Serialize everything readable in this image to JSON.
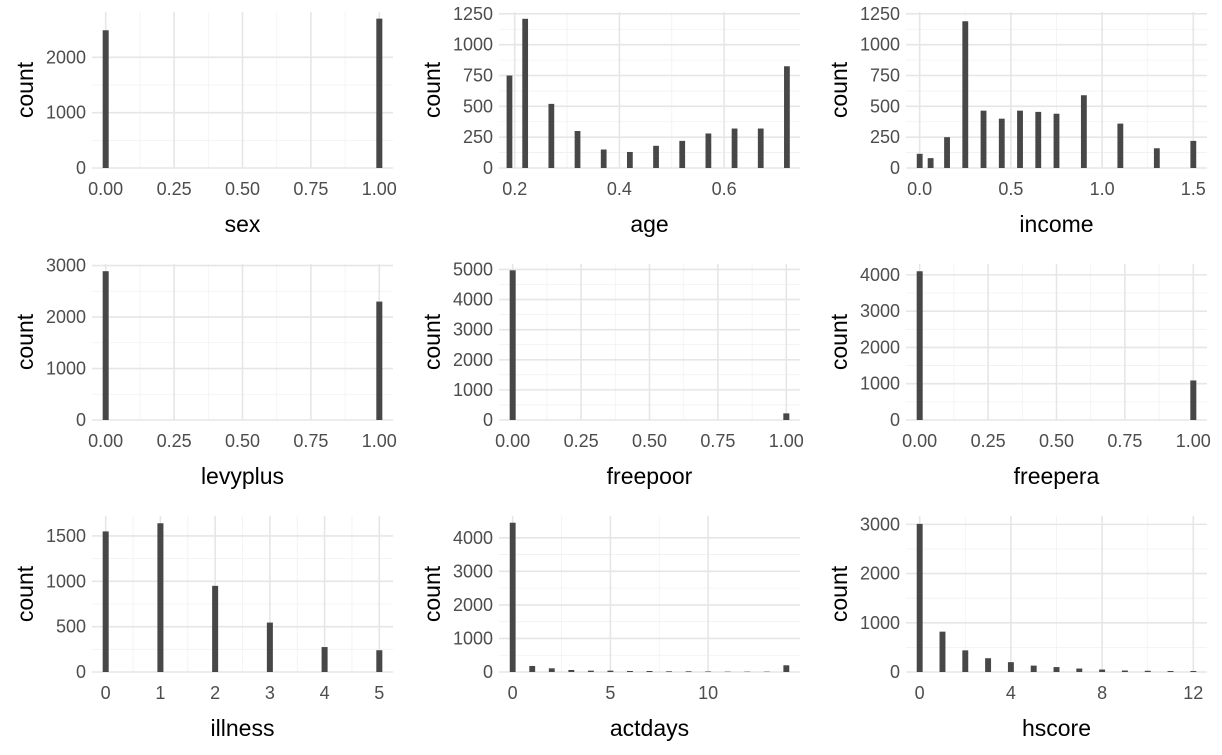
{
  "chart_data": [
    {
      "type": "bar",
      "xlabel": "sex",
      "ylabel": "count",
      "xlim": [
        -0.05,
        1.05
      ],
      "ylim": [
        0,
        2820
      ],
      "xticks": [
        0,
        0.25,
        0.5,
        0.75,
        1
      ],
      "xtick_labels": [
        "0.00",
        "0.25",
        "0.50",
        "0.75",
        "1.00"
      ],
      "yticks": [
        0,
        1000,
        2000
      ],
      "ytick_labels": [
        "0",
        "1000",
        "2000"
      ],
      "bar_width": 0.022,
      "x": [
        0,
        1
      ],
      "values": [
        2490,
        2700
      ],
      "grid": true
    },
    {
      "type": "bar",
      "xlabel": "age",
      "ylabel": "count",
      "xlim": [
        0.17,
        0.745
      ],
      "ylim": [
        0,
        1265
      ],
      "xticks": [
        0.2,
        0.4,
        0.6
      ],
      "xtick_labels": [
        "0.2",
        "0.4",
        "0.6"
      ],
      "yticks": [
        0,
        250,
        500,
        750,
        1000,
        1250
      ],
      "ytick_labels": [
        "0",
        "250",
        "500",
        "750",
        "1000",
        "1250"
      ],
      "bar_width": 0.011,
      "x": [
        0.19,
        0.22,
        0.27,
        0.32,
        0.37,
        0.42,
        0.47,
        0.52,
        0.57,
        0.62,
        0.67,
        0.72
      ],
      "values": [
        750,
        1210,
        520,
        300,
        150,
        130,
        180,
        220,
        280,
        320,
        320,
        825
      ],
      "grid": true
    },
    {
      "type": "bar",
      "xlabel": "income",
      "ylabel": "count",
      "xlim": [
        -0.075,
        1.575
      ],
      "ylim": [
        0,
        1265
      ],
      "xticks": [
        0,
        0.5,
        1,
        1.5
      ],
      "xtick_labels": [
        "0.0",
        "0.5",
        "1.0",
        "1.5"
      ],
      "yticks": [
        0,
        250,
        500,
        750,
        1000,
        1250
      ],
      "ytick_labels": [
        "0",
        "250",
        "500",
        "750",
        "1000",
        "1250"
      ],
      "bar_width": 0.032,
      "x": [
        0,
        0.06,
        0.15,
        0.25,
        0.35,
        0.45,
        0.55,
        0.65,
        0.75,
        0.9,
        1.1,
        1.3,
        1.5
      ],
      "values": [
        115,
        80,
        250,
        1190,
        465,
        400,
        465,
        455,
        440,
        590,
        360,
        160,
        220
      ],
      "grid": true
    },
    {
      "type": "bar",
      "xlabel": "levyplus",
      "ylabel": "count",
      "xlim": [
        -0.05,
        1.05
      ],
      "ylim": [
        0,
        3030
      ],
      "xticks": [
        0,
        0.25,
        0.5,
        0.75,
        1
      ],
      "xtick_labels": [
        "0.00",
        "0.25",
        "0.50",
        "0.75",
        "1.00"
      ],
      "yticks": [
        0,
        1000,
        2000,
        3000
      ],
      "ytick_labels": [
        "0",
        "1000",
        "2000",
        "3000"
      ],
      "bar_width": 0.022,
      "x": [
        0,
        1
      ],
      "values": [
        2890,
        2300
      ],
      "grid": true
    },
    {
      "type": "bar",
      "xlabel": "freepoor",
      "ylabel": "count",
      "xlim": [
        -0.05,
        1.05
      ],
      "ylim": [
        0,
        5180
      ],
      "xticks": [
        0,
        0.25,
        0.5,
        0.75,
        1
      ],
      "xtick_labels": [
        "0.00",
        "0.25",
        "0.50",
        "0.75",
        "1.00"
      ],
      "yticks": [
        0,
        1000,
        2000,
        3000,
        4000,
        5000
      ],
      "ytick_labels": [
        "0",
        "1000",
        "2000",
        "3000",
        "4000",
        "5000"
      ],
      "bar_width": 0.022,
      "x": [
        0,
        1
      ],
      "values": [
        4970,
        220
      ],
      "grid": true
    },
    {
      "type": "bar",
      "xlabel": "freepera",
      "ylabel": "count",
      "xlim": [
        -0.05,
        1.05
      ],
      "ylim": [
        0,
        4300
      ],
      "xticks": [
        0,
        0.25,
        0.5,
        0.75,
        1
      ],
      "xtick_labels": [
        "0.00",
        "0.25",
        "0.50",
        "0.75",
        "1.00"
      ],
      "yticks": [
        0,
        1000,
        2000,
        3000,
        4000
      ],
      "ytick_labels": [
        "0",
        "1000",
        "2000",
        "3000",
        "4000"
      ],
      "bar_width": 0.022,
      "x": [
        0,
        1
      ],
      "values": [
        4100,
        1090
      ],
      "grid": true
    },
    {
      "type": "bar",
      "xlabel": "illness",
      "ylabel": "count",
      "xlim": [
        -0.25,
        5.25
      ],
      "ylim": [
        0,
        1720
      ],
      "xticks": [
        0,
        1,
        2,
        3,
        4,
        5
      ],
      "xtick_labels": [
        "0",
        "1",
        "2",
        "3",
        "4",
        "5"
      ],
      "yticks": [
        0,
        500,
        1000,
        1500
      ],
      "ytick_labels": [
        "0",
        "500",
        "1000",
        "1500"
      ],
      "bar_width": 0.11,
      "x": [
        0,
        1,
        2,
        3,
        4,
        5
      ],
      "values": [
        1550,
        1640,
        950,
        545,
        275,
        240
      ],
      "grid": true
    },
    {
      "type": "bar",
      "xlabel": "actdays",
      "ylabel": "count",
      "xlim": [
        -0.7,
        14.7
      ],
      "ylim": [
        0,
        4650
      ],
      "xticks": [
        0,
        5,
        10
      ],
      "xtick_labels": [
        "0",
        "5",
        "10"
      ],
      "yticks": [
        0,
        1000,
        2000,
        3000,
        4000
      ],
      "ytick_labels": [
        "0",
        "1000",
        "2000",
        "3000",
        "4000"
      ],
      "bar_width": 0.3,
      "x": [
        0,
        1,
        2,
        3,
        4,
        5,
        6,
        7,
        8,
        9,
        10,
        11,
        12,
        13,
        14
      ],
      "values": [
        4450,
        180,
        110,
        60,
        40,
        40,
        30,
        30,
        20,
        20,
        15,
        10,
        10,
        10,
        200
      ],
      "grid": true
    },
    {
      "type": "bar",
      "xlabel": "hscore",
      "ylabel": "count",
      "xlim": [
        -0.6,
        12.6
      ],
      "ylim": [
        0,
        3170
      ],
      "xticks": [
        0,
        4,
        8,
        12
      ],
      "xtick_labels": [
        "0",
        "4",
        "8",
        "12"
      ],
      "yticks": [
        0,
        1000,
        2000,
        3000
      ],
      "ytick_labels": [
        "0",
        "1000",
        "2000",
        "3000"
      ],
      "bar_width": 0.26,
      "x": [
        0,
        1,
        2,
        3,
        4,
        5,
        6,
        7,
        8,
        9,
        10,
        11,
        12
      ],
      "values": [
        3010,
        820,
        440,
        280,
        200,
        130,
        100,
        70,
        50,
        30,
        25,
        20,
        20
      ],
      "grid": true
    }
  ]
}
